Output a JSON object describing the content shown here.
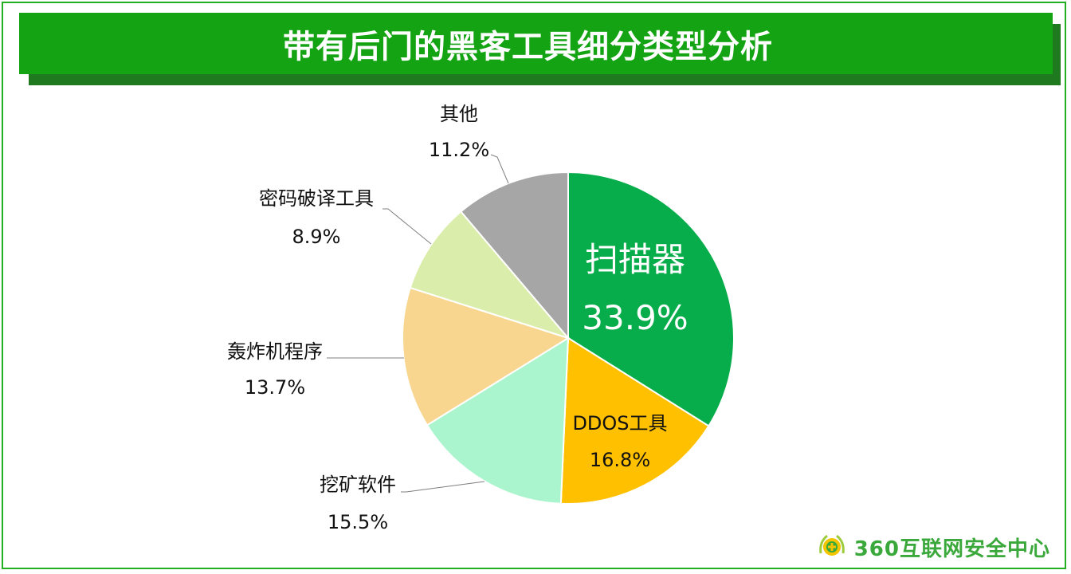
{
  "title": "带有后门的黑客工具细分类型分析",
  "logo_text": "360互联网安全中心",
  "chart_data": {
    "type": "pie",
    "title": "带有后门的黑客工具细分类型分析",
    "slices": [
      {
        "label": "扫描器",
        "value": 33.9,
        "display": "33.9%",
        "color": "#08ad4b"
      },
      {
        "label": "DDOS工具",
        "value": 16.8,
        "display": "16.8%",
        "color": "#ffc000"
      },
      {
        "label": "挖矿软件",
        "value": 15.5,
        "display": "15.5%",
        "color": "#aaf5cd"
      },
      {
        "label": "轰炸机程序",
        "value": 13.7,
        "display": "13.7%",
        "color": "#f8d68f"
      },
      {
        "label": "密码破译工具",
        "value": 8.9,
        "display": "8.9%",
        "color": "#dbedaa"
      },
      {
        "label": "其他",
        "value": 11.2,
        "display": "11.2%",
        "color": "#a6a6a6"
      }
    ],
    "start_angle_deg": 0,
    "direction": "clockwise"
  }
}
